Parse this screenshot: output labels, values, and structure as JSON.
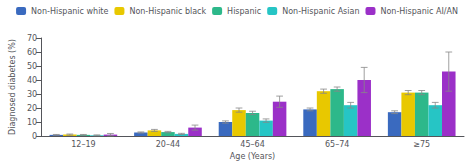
{
  "chart_data": {
    "type": "bar",
    "xlabel": "Age (Years)",
    "ylabel": "Diagnosed diabetes (%)",
    "categories": [
      "12–19",
      "20–44",
      "45–64",
      "65–74",
      "≥75"
    ],
    "series": [
      {
        "name": "Non-Hispanic white",
        "color": "#3a6abf",
        "values": [
          0.8,
          2.5,
          10.0,
          19.0,
          17.0
        ],
        "errors": [
          0.3,
          0.4,
          0.8,
          1.0,
          1.0
        ]
      },
      {
        "name": "Non-Hispanic black",
        "color": "#e8c800",
        "values": [
          1.0,
          4.0,
          18.5,
          32.0,
          31.0
        ],
        "errors": [
          0.4,
          0.7,
          1.5,
          1.5,
          1.5
        ]
      },
      {
        "name": "Hispanic",
        "color": "#2db88a",
        "values": [
          0.8,
          2.8,
          16.5,
          33.5,
          31.0
        ],
        "errors": [
          0.3,
          0.5,
          1.2,
          1.5,
          1.5
        ]
      },
      {
        "name": "Non-Hispanic Asian",
        "color": "#26c5c5",
        "values": [
          0.5,
          1.5,
          11.0,
          22.0,
          22.0
        ],
        "errors": [
          0.3,
          0.4,
          1.2,
          2.0,
          2.0
        ]
      },
      {
        "name": "Non-Hispanic AI/AN",
        "color": "#9b30c8",
        "values": [
          1.0,
          6.0,
          24.5,
          40.0,
          46.0
        ],
        "errors": [
          0.8,
          1.8,
          4.0,
          9.0,
          14.0
        ]
      }
    ],
    "ylim": [
      0,
      70
    ],
    "yticks": [
      0,
      10,
      20,
      30,
      40,
      50,
      60,
      70
    ],
    "grid": false,
    "legend": "top"
  }
}
